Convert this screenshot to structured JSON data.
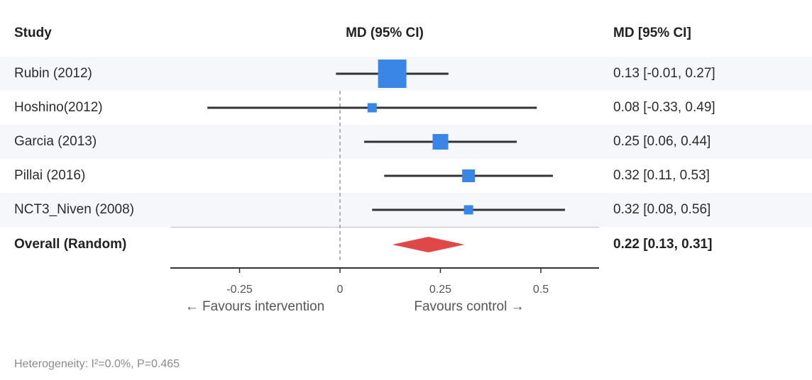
{
  "chart_data": {
    "type": "forest",
    "columns": {
      "study": "Study",
      "plot": "MD (95% CI)",
      "estimate": "MD [95% CI]"
    },
    "studies": [
      {
        "name": "Rubin (2012)",
        "md": 0.13,
        "lower": -0.01,
        "upper": 0.27,
        "ci_text": "0.13 [-0.01, 0.27]",
        "weight": "large"
      },
      {
        "name": "Hoshino(2012)",
        "md": 0.08,
        "lower": -0.33,
        "upper": 0.49,
        "ci_text": "0.08 [-0.33, 0.49]",
        "weight": "small"
      },
      {
        "name": "Garcia (2013)",
        "md": 0.25,
        "lower": 0.06,
        "upper": 0.44,
        "ci_text": "0.25 [0.06, 0.44]",
        "weight": "medium"
      },
      {
        "name": "Pillai (2016)",
        "md": 0.32,
        "lower": 0.11,
        "upper": 0.53,
        "ci_text": "0.32 [0.11, 0.53]",
        "weight": "medium-small"
      },
      {
        "name": "NCT3_Niven (2008)",
        "md": 0.32,
        "lower": 0.08,
        "upper": 0.56,
        "ci_text": "0.32 [0.08, 0.56]",
        "weight": "small"
      }
    ],
    "overall": {
      "name": "Overall (Random)",
      "md": 0.22,
      "lower": 0.13,
      "upper": 0.31,
      "ci_text": "0.22 [0.13, 0.31]"
    },
    "x_axis": {
      "ticks": [
        -0.25,
        0,
        0.25,
        0.5
      ],
      "tick_labels": [
        "-0.25",
        "0",
        "0.25",
        "0.5"
      ],
      "xlim": [
        -0.42,
        0.64
      ],
      "null_line": 0
    },
    "favours": {
      "left": "← Favours intervention",
      "right": "Favours control →"
    },
    "footnote": "Heterogeneity: I²=0.0%, P=0.465",
    "colors": {
      "study_marker": "#3a86e6",
      "overall_diamond": "#e04848",
      "ci_line": "#333333",
      "null_line": "#999999",
      "axis": "#333333",
      "row_stripe": "#f5f7fa"
    }
  }
}
